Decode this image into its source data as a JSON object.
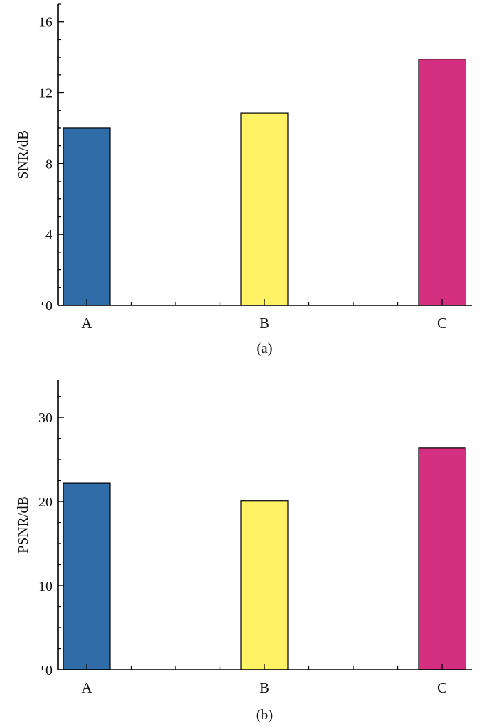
{
  "chart_data": [
    {
      "type": "bar",
      "caption": "(a)",
      "title": "",
      "xlabel": "",
      "ylabel": "SNR/dB",
      "ylim": [
        0,
        17
      ],
      "yticks": [
        0,
        4,
        8,
        12,
        16
      ],
      "categories": [
        "A",
        "B",
        "C"
      ],
      "values": [
        10.0,
        10.85,
        13.9
      ],
      "colors": [
        "#2f6ca8",
        "#fff264",
        "#d52f82"
      ],
      "grid": false,
      "legend": "none"
    },
    {
      "type": "bar",
      "caption": "(b)",
      "title": "",
      "xlabel": "",
      "ylabel": "PSNR/dB",
      "ylim": [
        0,
        34.5
      ],
      "yticks": [
        0,
        10,
        20,
        30
      ],
      "categories": [
        "A",
        "B",
        "C"
      ],
      "values": [
        22.2,
        20.1,
        26.4
      ],
      "colors": [
        "#2f6ca8",
        "#fff264",
        "#d52f82"
      ],
      "grid": false,
      "legend": "none"
    }
  ]
}
